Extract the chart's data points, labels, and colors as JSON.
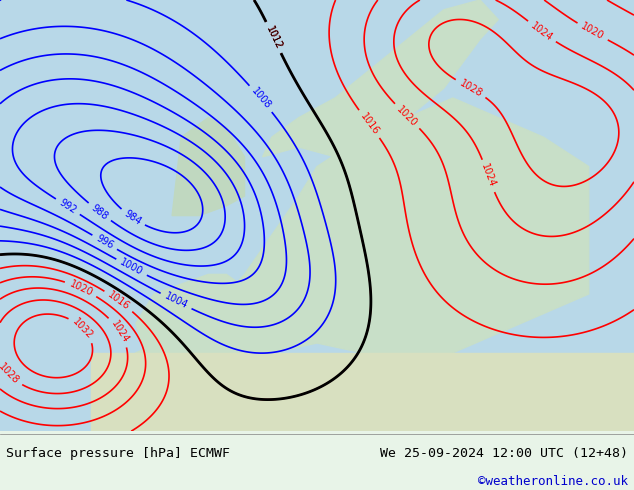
{
  "title_left": "Surface pressure [hPa] ECMWF",
  "title_right": "We 25-09-2024 12:00 UTC (12+48)",
  "credit": "©weatheronline.co.uk",
  "bg_color": "#e8f4e8",
  "land_color": "#c8e6c8",
  "sea_color": "#d0e8f0",
  "fig_width": 6.34,
  "fig_height": 4.9,
  "dpi": 100,
  "bottom_bar_color": "#f0f0f0",
  "title_fontsize": 9.5,
  "credit_fontsize": 9,
  "credit_color": "#0000cc"
}
